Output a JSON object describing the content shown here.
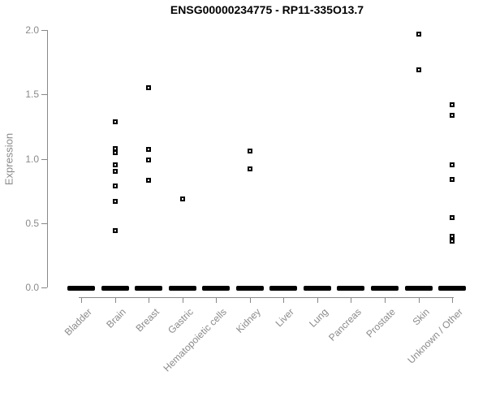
{
  "page": {
    "background": "#ffffff"
  },
  "colors": {
    "title_text": "#000000",
    "axis_line": "#888888",
    "axis_text": "#8a8a8a",
    "point_outline": "#000000",
    "point_fill": "#ffffff",
    "zero_dash": "#000000"
  },
  "chart_data": {
    "type": "scatter",
    "title": "ENSG00000234775 - RP11-335O13.7",
    "xlabel": "",
    "ylabel": "Expression",
    "ylim": [
      0,
      2
    ],
    "yticks": [
      "0.0",
      "0.5",
      "1.0",
      "1.5",
      "2.0"
    ],
    "grid": false,
    "legend": "none",
    "marker": "open-square",
    "categories": [
      "Bladder",
      "Brain",
      "Breast",
      "Gastric",
      "Hematopoietic cells",
      "Kidney",
      "Liver",
      "Lung",
      "Pancreas",
      "Prostate",
      "Skin",
      "Unknown / Other"
    ],
    "series": [
      {
        "name": "expression",
        "points_by_category": [
          {
            "category": "Bladder",
            "values": []
          },
          {
            "category": "Brain",
            "values": [
              1.29,
              1.08,
              1.05,
              0.95,
              0.9,
              0.79,
              0.67,
              0.44
            ]
          },
          {
            "category": "Breast",
            "values": [
              1.55,
              1.07,
              0.99,
              0.83
            ]
          },
          {
            "category": "Gastric",
            "values": [
              0.69
            ]
          },
          {
            "category": "Hematopoietic cells",
            "values": []
          },
          {
            "category": "Kidney",
            "values": [
              1.06,
              0.92
            ]
          },
          {
            "category": "Liver",
            "values": []
          },
          {
            "category": "Lung",
            "values": []
          },
          {
            "category": "Pancreas",
            "values": []
          },
          {
            "category": "Prostate",
            "values": []
          },
          {
            "category": "Skin",
            "values": [
              1.97,
              1.69
            ]
          },
          {
            "category": "Unknown / Other",
            "values": [
              1.42,
              1.34,
              0.95,
              0.84,
              0.54,
              0.4,
              0.36
            ]
          }
        ]
      }
    ],
    "zero_clusters": {
      "value": 0.0,
      "style": "thick black dash of many overlapping samples at expression 0",
      "categories_with_zero_dash": [
        "Bladder",
        "Brain",
        "Breast",
        "Gastric",
        "Hematopoietic cells",
        "Kidney",
        "Liver",
        "Lung",
        "Pancreas",
        "Prostate",
        "Skin",
        "Unknown / Other"
      ]
    }
  }
}
